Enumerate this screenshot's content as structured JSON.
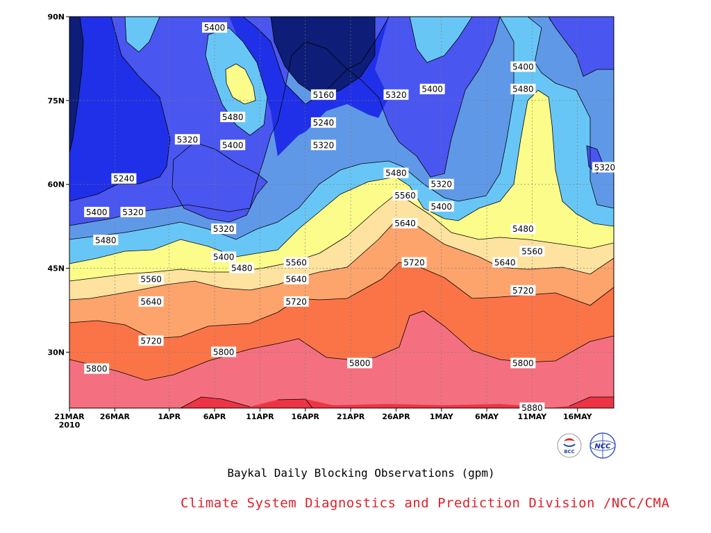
{
  "chart_data": {
    "type": "contour",
    "title": "Baykal Daily Blocking Observations (gpm)",
    "x_ticks": [
      "21MAR\n2010",
      "26MAR",
      "1APR",
      "6APR",
      "11APR",
      "16APR",
      "21APR",
      "26APR",
      "1MAY",
      "6MAY",
      "11MAY",
      "16MAY"
    ],
    "y_ticks": [
      "90N",
      "75N",
      "60N",
      "45N",
      "30N"
    ],
    "xlim": [
      "2010-03-21",
      "2010-05-20"
    ],
    "ylim": [
      20,
      90
    ],
    "grid": true,
    "contour_levels": [
      5160,
      5240,
      5320,
      5400,
      5480,
      5560,
      5640,
      5720,
      5800,
      5880
    ],
    "level_colors": {
      "5160": "#0e1d78",
      "5240": "#2030e8",
      "5320": "#4a56f0",
      "5400": "#6098e8",
      "5480": "#68c6f6",
      "5560": "#fcfc8a",
      "5640": "#fde2a0",
      "5720": "#fca46c",
      "5800": "#fa7448",
      "5880": "#f47080",
      "max": "#ee3444"
    },
    "contour_labels": [
      {
        "text": "5400",
        "date": "2010-04-06",
        "lat": 88
      },
      {
        "text": "5160",
        "date": "2010-04-18",
        "lat": 76
      },
      {
        "text": "5320",
        "date": "2010-04-26",
        "lat": 76
      },
      {
        "text": "5400",
        "date": "2010-04-30",
        "lat": 77
      },
      {
        "text": "5400",
        "date": "2010-05-10",
        "lat": 81
      },
      {
        "text": "5480",
        "date": "2010-05-10",
        "lat": 77
      },
      {
        "text": "5480",
        "date": "2010-04-08",
        "lat": 72
      },
      {
        "text": "5240",
        "date": "2010-04-18",
        "lat": 71
      },
      {
        "text": "5320",
        "date": "2010-04-03",
        "lat": 68
      },
      {
        "text": "5400",
        "date": "2010-04-08",
        "lat": 67
      },
      {
        "text": "5320",
        "date": "2010-04-18",
        "lat": 67
      },
      {
        "text": "5240",
        "date": "2010-03-27",
        "lat": 61
      },
      {
        "text": "5480",
        "date": "2010-04-26",
        "lat": 62
      },
      {
        "text": "5320",
        "date": "2010-05-01",
        "lat": 60
      },
      {
        "text": "5320",
        "date": "2010-05-19",
        "lat": 63
      },
      {
        "text": "5560",
        "date": "2010-04-27",
        "lat": 58
      },
      {
        "text": "5400",
        "date": "2010-03-24",
        "lat": 55
      },
      {
        "text": "5320",
        "date": "2010-03-28",
        "lat": 55
      },
      {
        "text": "5400",
        "date": "2010-05-01",
        "lat": 56
      },
      {
        "text": "5640",
        "date": "2010-04-27",
        "lat": 53
      },
      {
        "text": "5480",
        "date": "2010-05-10",
        "lat": 52
      },
      {
        "text": "5320",
        "date": "2010-04-07",
        "lat": 52
      },
      {
        "text": "5480",
        "date": "2010-03-25",
        "lat": 50
      },
      {
        "text": "5400",
        "date": "2010-04-07",
        "lat": 47
      },
      {
        "text": "5560",
        "date": "2010-04-15",
        "lat": 46
      },
      {
        "text": "5560",
        "date": "2010-05-11",
        "lat": 48
      },
      {
        "text": "5720",
        "date": "2010-04-28",
        "lat": 46
      },
      {
        "text": "5640",
        "date": "2010-05-08",
        "lat": 46
      },
      {
        "text": "5480",
        "date": "2010-04-09",
        "lat": 45
      },
      {
        "text": "5560",
        "date": "2010-03-30",
        "lat": 43
      },
      {
        "text": "5640",
        "date": "2010-04-15",
        "lat": 43
      },
      {
        "text": "5720",
        "date": "2010-05-10",
        "lat": 41
      },
      {
        "text": "5720",
        "date": "2010-04-15",
        "lat": 39
      },
      {
        "text": "5640",
        "date": "2010-03-30",
        "lat": 39
      },
      {
        "text": "5720",
        "date": "2010-03-30",
        "lat": 32
      },
      {
        "text": "5800",
        "date": "2010-04-07",
        "lat": 30
      },
      {
        "text": "5800",
        "date": "2010-03-24",
        "lat": 27
      },
      {
        "text": "5800",
        "date": "2010-04-22",
        "lat": 28
      },
      {
        "text": "5800",
        "date": "2010-05-10",
        "lat": 28
      },
      {
        "text": "5880",
        "date": "2010-05-11",
        "lat": 20
      }
    ]
  },
  "footer": {
    "credit": "Climate System Diagnostics and Prediction Division /NCC/CMA",
    "logo_left_text": "BCC",
    "logo_right_text": "NCC"
  }
}
